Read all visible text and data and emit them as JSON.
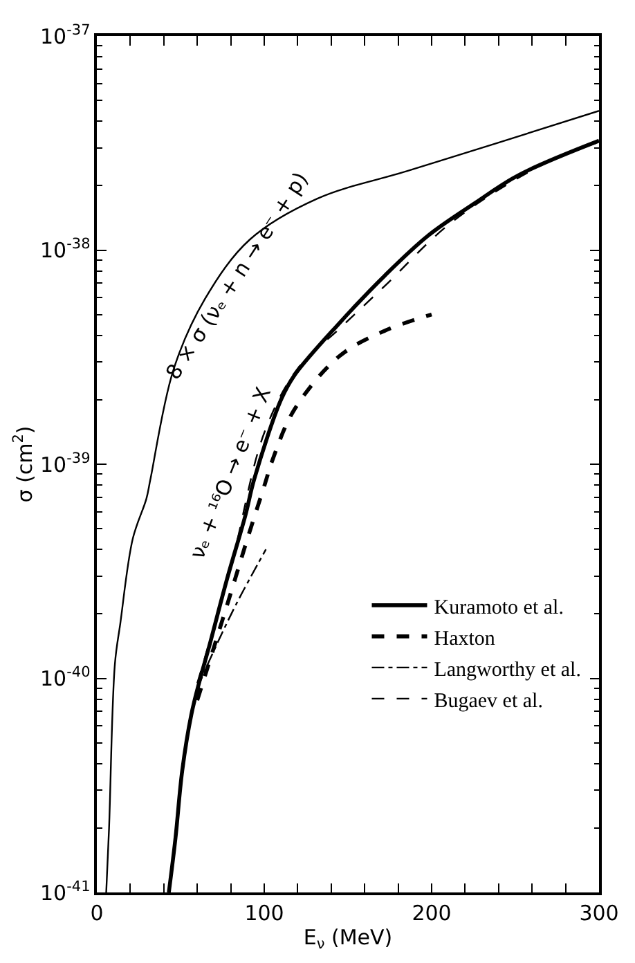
{
  "chart_data": {
    "type": "line",
    "xlabel": "E$_{ν}$ (MeV)",
    "ylabel": "σ (cm$^{2}$)",
    "log": "y",
    "xlim": [
      0,
      300
    ],
    "ylim": [
      1e-41,
      1e-37
    ],
    "xticks": [
      0,
      {
        "value": 20,
        "label": null
      },
      {
        "value": 40,
        "label": null
      },
      {
        "value": 60,
        "label": null
      },
      {
        "value": 80,
        "label": null
      },
      100,
      {
        "value": 120,
        "label": null
      },
      {
        "value": 140,
        "label": null
      },
      {
        "value": 160,
        "label": null
      },
      {
        "value": 180,
        "label": null
      },
      200,
      {
        "value": 220,
        "label": null
      },
      {
        "value": 240,
        "label": null
      },
      {
        "value": 260,
        "label": null
      },
      {
        "value": 280,
        "label": null
      },
      300
    ],
    "yticks": [
      {
        "value": 1e-41,
        "label": "10$^{-41}$"
      },
      {
        "value": 1e-40,
        "label": "10$^{-40}$"
      },
      {
        "value": 1e-39,
        "label": "10$^{-39}$"
      },
      {
        "value": 1e-38,
        "label": "10$^{-38}$"
      },
      {
        "value": 1e-37,
        "label": "10$^{-37}$"
      }
    ],
    "legend": "bottom right",
    "marker": "none",
    "series": [
      {
        "color": "#000000",
        "line_style": "solid",
        "x": [
          5.6,
          7.3,
          10.8,
          14,
          21.5,
          29.6,
          32,
          45.7,
          64.5,
          91.4,
          131.7,
          185.5,
          239,
          300
        ],
        "values": [
          1e-41,
          2e-41,
          1.17e-40,
          1.8e-40,
          4.5e-40,
          6.9e-40,
          8.5e-40,
          2.75e-39,
          5.9e-39,
          1.12e-38,
          1.74e-38,
          2.34e-38,
          3.16e-38,
          4.47e-38
        ]
      },
      {
        "name": "Kuramoto et al.",
        "color": "#000000",
        "line_style": "solid",
        "x": [
          43,
          47,
          51,
          56.5,
          61.8,
          67,
          78,
          88.7,
          94,
          110,
          118,
          145,
          172,
          198,
          226,
          252,
          300
        ],
        "values": [
          1e-41,
          1.8e-41,
          3.7e-41,
          6.8e-41,
          1e-40,
          1.4e-40,
          2.95e-40,
          5.75e-40,
          8.5e-40,
          2e-39,
          2.6e-39,
          4.57e-39,
          7.6e-39,
          1.17e-38,
          1.66e-38,
          2.24e-38,
          3.24e-38
        ]
      },
      {
        "name": "Haxton",
        "color": "#000000",
        "line_style": "dashed",
        "x": [
          60,
          70,
          80,
          90,
          100,
          105,
          118,
          145,
          172,
          200
        ],
        "values": [
          7.9e-41,
          1.4e-40,
          2.5e-40,
          4.5e-40,
          7.9e-40,
          1.05e-39,
          1.8e-39,
          3.2e-39,
          4.2e-39,
          5e-39
        ]
      },
      {
        "name": "Langworthy et al.",
        "color": "#000000",
        "line_style": "dashdot",
        "x": [
          60,
          70,
          83,
          101
        ],
        "values": [
          9e-41,
          1.35e-40,
          2.2e-40,
          4e-40
        ]
      },
      {
        "name": "Bugaev et al.",
        "color": "#000000",
        "line_style": "dashed",
        "x": [
          60,
          80,
          100,
          120,
          145,
          172,
          212,
          266,
          300
        ],
        "values": [
          9.5e-41,
          3.3e-40,
          1.4e-39,
          2.8e-39,
          4.3e-39,
          6.8e-39,
          1.35e-38,
          2.5e-38,
          3.2e-38
        ]
      }
    ],
    "annotations": [
      "8 × σ (νₑ + n → e⁻ + p)",
      "νₑ + ¹⁶O → e⁻ + X"
    ]
  }
}
